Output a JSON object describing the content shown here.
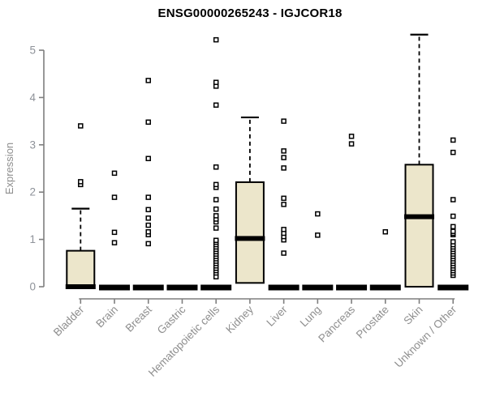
{
  "chart_data": {
    "type": "boxplot",
    "title": "ENSG00000265243 - IGJCOR18",
    "xlabel": "",
    "ylabel": "Expression",
    "ylim": [
      0,
      5.4
    ],
    "yticks": [
      0,
      1,
      2,
      3,
      4,
      5
    ],
    "grid": false,
    "legend": "none",
    "categories": [
      "Bladder",
      "Brain",
      "Breast",
      "Gastric",
      "Hematopoietic cells",
      "Kidney",
      "Liver",
      "Lung",
      "Pancreas",
      "Prostate",
      "Skin",
      "Unknown / Other"
    ],
    "series": [
      {
        "category": "Bladder",
        "min": 0,
        "q1": 0,
        "median": 0,
        "q3": 0.76,
        "max": 1.65,
        "outliers": [
          2.16,
          2.22,
          3.4
        ]
      },
      {
        "category": "Brain",
        "min": 0,
        "q1": 0,
        "median": 0,
        "q3": 0,
        "max": 0,
        "outliers": [
          0.93,
          1.15,
          1.89,
          2.4
        ]
      },
      {
        "category": "Breast",
        "min": 0,
        "q1": 0,
        "median": 0,
        "q3": 0,
        "max": 0,
        "outliers": [
          0.91,
          1.1,
          1.16,
          1.3,
          1.45,
          1.63,
          1.89,
          2.71,
          3.48,
          4.36
        ]
      },
      {
        "category": "Gastric",
        "min": 0,
        "q1": 0,
        "median": 0,
        "q3": 0,
        "max": 0,
        "outliers": []
      },
      {
        "category": "Hematopoietic cells",
        "min": 0,
        "q1": 0,
        "median": 0,
        "q3": 0,
        "max": 0,
        "outliers": [
          0.21,
          0.29,
          0.34,
          0.39,
          0.44,
          0.49,
          0.54,
          0.59,
          0.64,
          0.69,
          0.74,
          0.79,
          0.84,
          0.89,
          0.94,
          0.98,
          1.24,
          1.37,
          1.43,
          1.5,
          1.64,
          1.84,
          2.1,
          2.16,
          2.53,
          3.84,
          4.24,
          4.32,
          5.22
        ]
      },
      {
        "category": "Kidney",
        "min": 0.08,
        "q1": 0.08,
        "median": 1.02,
        "q3": 2.21,
        "max": 3.58,
        "outliers": []
      },
      {
        "category": "Liver",
        "min": 0,
        "q1": 0,
        "median": 0,
        "q3": 0,
        "max": 0,
        "outliers": [
          0.71,
          0.99,
          1.06,
          1.13,
          1.21,
          1.74,
          1.87,
          2.51,
          2.73,
          2.87,
          3.5
        ]
      },
      {
        "category": "Lung",
        "min": 0,
        "q1": 0,
        "median": 0,
        "q3": 0,
        "max": 0,
        "outliers": [
          1.09,
          1.54
        ]
      },
      {
        "category": "Pancreas",
        "min": 0,
        "q1": 0,
        "median": 0,
        "q3": 0,
        "max": 0,
        "outliers": [
          3.02,
          3.18
        ]
      },
      {
        "category": "Prostate",
        "min": 0,
        "q1": 0,
        "median": 0,
        "q3": 0,
        "max": 0,
        "outliers": [
          1.16
        ]
      },
      {
        "category": "Skin",
        "min": 0,
        "q1": 0,
        "median": 1.48,
        "q3": 2.58,
        "max": 5.33,
        "outliers": []
      },
      {
        "category": "Unknown / Other",
        "min": 0,
        "q1": 0,
        "median": 0,
        "q3": 0,
        "max": 0,
        "outliers": [
          0.24,
          0.29,
          0.34,
          0.39,
          0.44,
          0.49,
          0.54,
          0.59,
          0.64,
          0.69,
          0.74,
          0.79,
          0.84,
          0.89,
          0.95,
          1.1,
          1.13,
          1.17,
          1.27,
          1.49,
          1.84,
          2.84,
          3.1
        ]
      }
    ],
    "colors": {
      "box_fill": "#ece6cb",
      "box_stroke": "#000000",
      "median": "#000000",
      "whisker": "#000000",
      "outlier_stroke": "#000000",
      "outlier_fill": "#ffffff",
      "axis": "#7f7f7f",
      "tick_label": "#8e9299",
      "category_label": "#8e8e8e",
      "title": "#000000",
      "background": "#ffffff"
    }
  }
}
